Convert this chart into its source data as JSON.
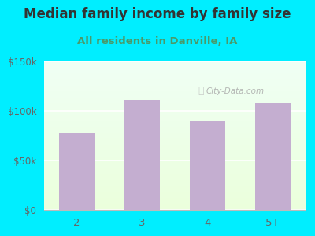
{
  "title": "Median family income by family size",
  "subtitle": "All residents in Danville, IA",
  "categories": [
    "2",
    "3",
    "4",
    "5+"
  ],
  "values": [
    78000,
    111000,
    90000,
    108000
  ],
  "bar_color": "#c4aed0",
  "ylim": [
    0,
    150000
  ],
  "yticks": [
    0,
    50000,
    100000,
    150000
  ],
  "ytick_labels": [
    "$0",
    "$50k",
    "$100k",
    "$150k"
  ],
  "title_fontsize": 12,
  "subtitle_fontsize": 9.5,
  "title_color": "#333333",
  "subtitle_color": "#4a9a6a",
  "tick_color": "#666666",
  "bg_outer": "#00eeff",
  "watermark": "City-Data.com"
}
